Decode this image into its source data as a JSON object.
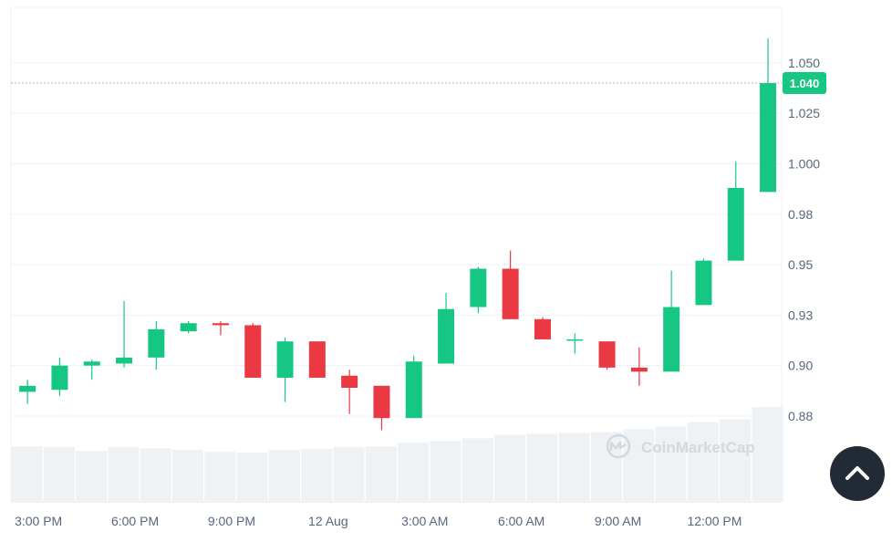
{
  "chart_data": {
    "type": "candlestick",
    "y_ticks": [
      "1.050",
      "1.025",
      "1.000",
      "0.98",
      "0.95",
      "0.93",
      "0.90",
      "0.88"
    ],
    "y_tick_values": [
      1.05,
      1.025,
      1.0,
      0.975,
      0.95,
      0.925,
      0.9,
      0.875
    ],
    "ylim": [
      0.8325,
      1.0775
    ],
    "x_tick_labels": [
      "3:00 PM",
      "6:00 PM",
      "9:00 PM",
      "12 Aug",
      "3:00 AM",
      "6:00 AM",
      "9:00 AM",
      "12:00 PM"
    ],
    "x_tick_indices": [
      0,
      3,
      6,
      9,
      12,
      15,
      18,
      21
    ],
    "current_price": 1.04,
    "current_price_label": "1.040",
    "grid": true,
    "up_color": "#16c784",
    "down_color": "#ea3943",
    "volume_color": "#eff2f5",
    "candles": [
      {
        "o": 0.887,
        "h": 0.893,
        "l": 0.881,
        "c": 0.89
      },
      {
        "o": 0.888,
        "h": 0.904,
        "l": 0.885,
        "c": 0.9
      },
      {
        "o": 0.9,
        "h": 0.903,
        "l": 0.893,
        "c": 0.902
      },
      {
        "o": 0.901,
        "h": 0.932,
        "l": 0.899,
        "c": 0.904
      },
      {
        "o": 0.904,
        "h": 0.922,
        "l": 0.898,
        "c": 0.918
      },
      {
        "o": 0.917,
        "h": 0.922,
        "l": 0.916,
        "c": 0.921
      },
      {
        "o": 0.921,
        "h": 0.922,
        "l": 0.915,
        "c": 0.92
      },
      {
        "o": 0.92,
        "h": 0.921,
        "l": 0.894,
        "c": 0.894
      },
      {
        "o": 0.894,
        "h": 0.914,
        "l": 0.882,
        "c": 0.912
      },
      {
        "o": 0.912,
        "h": 0.912,
        "l": 0.894,
        "c": 0.894
      },
      {
        "o": 0.895,
        "h": 0.898,
        "l": 0.876,
        "c": 0.889
      },
      {
        "o": 0.89,
        "h": 0.89,
        "l": 0.868,
        "c": 0.874
      },
      {
        "o": 0.874,
        "h": 0.905,
        "l": 0.874,
        "c": 0.902
      },
      {
        "o": 0.901,
        "h": 0.936,
        "l": 0.901,
        "c": 0.928
      },
      {
        "o": 0.929,
        "h": 0.949,
        "l": 0.926,
        "c": 0.948
      },
      {
        "o": 0.948,
        "h": 0.957,
        "l": 0.923,
        "c": 0.923
      },
      {
        "o": 0.923,
        "h": 0.924,
        "l": 0.913,
        "c": 0.913
      },
      {
        "o": 0.913,
        "h": 0.916,
        "l": 0.906,
        "c": 0.913
      },
      {
        "o": 0.912,
        "h": 0.912,
        "l": 0.898,
        "c": 0.899
      },
      {
        "o": 0.899,
        "h": 0.909,
        "l": 0.89,
        "c": 0.897
      },
      {
        "o": 0.897,
        "h": 0.947,
        "l": 0.897,
        "c": 0.929
      },
      {
        "o": 0.93,
        "h": 0.953,
        "l": 0.93,
        "c": 0.952
      },
      {
        "o": 0.952,
        "h": 1.001,
        "l": 0.952,
        "c": 0.988
      },
      {
        "o": 0.986,
        "h": 1.062,
        "l": 0.986,
        "c": 1.04
      }
    ],
    "volume": [
      62,
      61,
      57,
      61,
      60,
      58,
      56,
      55,
      58,
      59,
      61,
      62,
      66,
      68,
      71,
      75,
      76,
      77,
      78,
      81,
      84,
      89,
      92,
      106
    ]
  },
  "watermark": {
    "text": "CoinMarketCap"
  },
  "scroll_top": {
    "icon": "chevron-up-icon"
  }
}
